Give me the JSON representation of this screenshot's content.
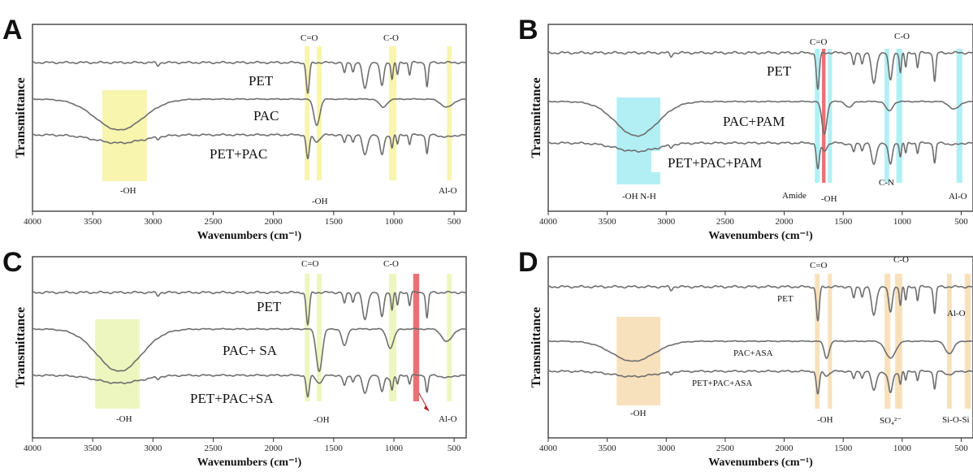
{
  "chart_data": [
    {
      "panel": "A",
      "type": "line",
      "xlabel": "Wavenumbers (cm⁻¹)",
      "ylabel": "Transmittance",
      "xlim": [
        4000,
        400
      ],
      "xticks": [
        4000,
        3500,
        3000,
        2500,
        2000,
        1500,
        1000,
        500
      ],
      "series": [
        {
          "name": "PET",
          "offset": 0.0
        },
        {
          "name": "PAC",
          "offset": 1.0
        },
        {
          "name": "PET+PAC",
          "offset": 2.0
        }
      ],
      "highlight_bands": [
        {
          "from": 3420,
          "to": 3050,
          "color": "#f6f3a0",
          "label": "-OH"
        },
        {
          "from": 1740,
          "to": 1700,
          "color": "#f6f3a0",
          "label": "C=O"
        },
        {
          "from": 1640,
          "to": 1600,
          "color": "#f6f3a0",
          "label": "-OH"
        },
        {
          "from": 1040,
          "to": 980,
          "color": "#f6f3a0",
          "label": "C-O"
        },
        {
          "from": 560,
          "to": 520,
          "color": "#f6f3a0",
          "label": "Al-O"
        }
      ]
    },
    {
      "panel": "B",
      "type": "line",
      "xlabel": "Wavenumbers (cm⁻¹)",
      "ylabel": "Transmittance",
      "xlim": [
        4000,
        400
      ],
      "xticks": [
        4000,
        3500,
        3000,
        2500,
        2000,
        1500,
        1000,
        500
      ],
      "series": [
        {
          "name": "PET",
          "offset": 0.0
        },
        {
          "name": "PAC+PAM",
          "offset": 1.0
        },
        {
          "name": "PET+PAC+PAM",
          "offset": 2.0
        }
      ],
      "highlight_bands": [
        {
          "from": 3420,
          "to": 3050,
          "color": "#a4ecf2",
          "label": "-OH  N-H"
        },
        {
          "from": 1740,
          "to": 1700,
          "color": "#a4ecf2",
          "label": ""
        },
        {
          "from": 1680,
          "to": 1650,
          "color": "#e5585a",
          "label": "Amide"
        },
        {
          "from": 1630,
          "to": 1595,
          "color": "#a4ecf2",
          "label": "-OH"
        },
        {
          "from": 1150,
          "to": 1110,
          "color": "#a4ecf2",
          "label": "C-N"
        },
        {
          "from": 1050,
          "to": 1000,
          "color": "#a4ecf2",
          "label": "C-O"
        },
        {
          "from": 540,
          "to": 490,
          "color": "#a4ecf2",
          "label": "Al-O"
        }
      ]
    },
    {
      "panel": "C",
      "type": "line",
      "xlabel": "Wavenumbers (cm⁻¹)",
      "ylabel": "Transmittance",
      "xlim": [
        4000,
        400
      ],
      "xticks": [
        4000,
        3500,
        3000,
        2500,
        2000,
        1500,
        1000,
        500
      ],
      "series": [
        {
          "name": "PET",
          "offset": 0.0
        },
        {
          "name": "PAC+ SA",
          "offset": 1.0
        },
        {
          "name": "PET+PAC+SA",
          "offset": 2.0
        }
      ],
      "highlight_bands": [
        {
          "from": 3480,
          "to": 3110,
          "color": "#eaf4b4",
          "label": "-OH"
        },
        {
          "from": 1740,
          "to": 1700,
          "color": "#eaf4b4",
          "label": "C=O"
        },
        {
          "from": 1640,
          "to": 1600,
          "color": "#eaf4b4",
          "label": "-OH"
        },
        {
          "from": 1040,
          "to": 980,
          "color": "#eaf4b4",
          "label": "C-O"
        },
        {
          "from": 840,
          "to": 790,
          "color": "#e5585a",
          "label": ""
        },
        {
          "from": 560,
          "to": 520,
          "color": "#eaf4b4",
          "label": "Al-O"
        }
      ]
    },
    {
      "panel": "D",
      "type": "line",
      "xlabel": "Wavenumbers (cm⁻¹)",
      "ylabel": "Transmittance",
      "xlim": [
        4000,
        400
      ],
      "xticks": [
        4000,
        3500,
        3000,
        2500,
        2000,
        1500,
        1000,
        500
      ],
      "series": [
        {
          "name": "PET",
          "offset": 0.0
        },
        {
          "name": "PAC+ASA",
          "offset": 1.0
        },
        {
          "name": "PET+PAC+ASA",
          "offset": 2.0
        }
      ],
      "highlight_bands": [
        {
          "from": 3420,
          "to": 3050,
          "color": "#f6dcb0",
          "label": "-OH"
        },
        {
          "from": 1740,
          "to": 1700,
          "color": "#f6dcb0",
          "label": "C=O"
        },
        {
          "from": 1630,
          "to": 1595,
          "color": "#f6dcb0",
          "label": "-OH"
        },
        {
          "from": 1150,
          "to": 1100,
          "color": "#f6dcb0",
          "label": "SO₄²⁻"
        },
        {
          "from": 1060,
          "to": 1000,
          "color": "#f6dcb0",
          "label": "C-O"
        },
        {
          "from": 620,
          "to": 580,
          "color": "#f6dcb0",
          "label": "Al-O"
        },
        {
          "from": 470,
          "to": 420,
          "color": "#f6dcb0",
          "label": "Si-O-Si"
        }
      ]
    }
  ]
}
